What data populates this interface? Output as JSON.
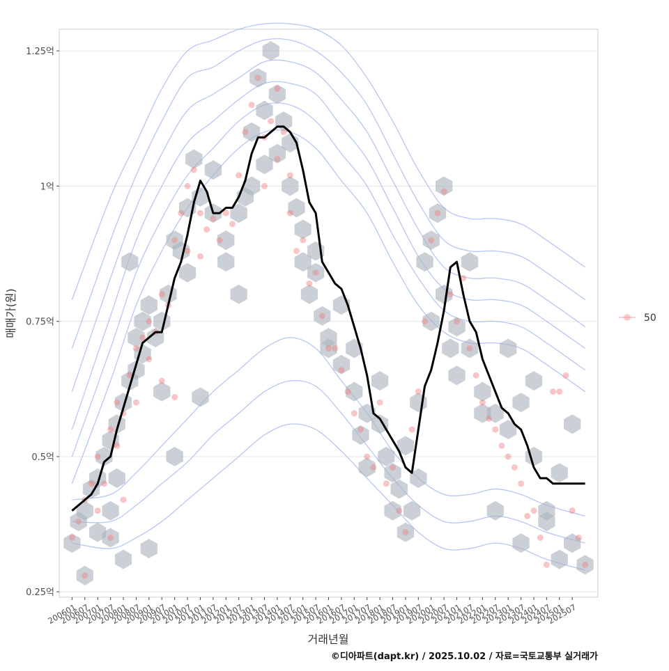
{
  "chart_data": {
    "type": "scatter",
    "title": "",
    "xlabel": "거래년월",
    "ylabel": "매매가(원)",
    "ylim": [
      0.24,
      1.29
    ],
    "xlim": [
      -1,
      41
    ],
    "x_tick_labels": [
      "200601",
      "200607",
      "200701",
      "200707",
      "200801",
      "200807",
      "200901",
      "200907",
      "201001",
      "201007",
      "201101",
      "201107",
      "201201",
      "201207",
      "201301",
      "201307",
      "201401",
      "201407",
      "201501",
      "201507",
      "201601",
      "201607",
      "201701",
      "201707",
      "201801",
      "201807",
      "201901",
      "201907",
      "202001",
      "202007",
      "202101",
      "202107",
      "202201",
      "202207",
      "202301",
      "202307",
      "202401",
      "202407",
      "202501",
      "202507"
    ],
    "y_ticks": [
      {
        "value": 0.25,
        "label": "0.25억"
      },
      {
        "value": 0.5,
        "label": "0.5억"
      },
      {
        "value": 0.75,
        "label": "0.75억"
      },
      {
        "value": 1.0,
        "label": "1억"
      },
      {
        "value": 1.25,
        "label": "1.25억"
      }
    ],
    "legend": {
      "label": "50",
      "position": "right"
    },
    "caption": "©디아파트(dapt.kr) / 2025.10.02 / 자료=국토교통부 실거래가",
    "layers": [
      "density-contours",
      "hexbin",
      "points",
      "moving-average"
    ],
    "moving_average": {
      "x": [
        0,
        0.5,
        1,
        1.5,
        2,
        2.5,
        3,
        3.5,
        4,
        4.5,
        5,
        5.5,
        6,
        6.5,
        7,
        7.5,
        8,
        8.5,
        9,
        9.5,
        10,
        10.5,
        11,
        11.5,
        12,
        12.5,
        13,
        13.5,
        14,
        14.5,
        15,
        15.5,
        16,
        16.5,
        17,
        17.5,
        18,
        18.5,
        19,
        19.5,
        20,
        20.5,
        21,
        21.5,
        22,
        22.5,
        23,
        23.5,
        24,
        24.5,
        25,
        25.5,
        26,
        26.5,
        27,
        27.5,
        28,
        28.5,
        29,
        29.5,
        30,
        30.5,
        31,
        31.5,
        32,
        32.5,
        33,
        33.5,
        34,
        34.5,
        35,
        35.5,
        36,
        36.5,
        37,
        37.5,
        38,
        38.5,
        39,
        39.5,
        40
      ],
      "y": [
        0.4,
        0.41,
        0.42,
        0.43,
        0.45,
        0.49,
        0.5,
        0.55,
        0.59,
        0.63,
        0.67,
        0.71,
        0.72,
        0.73,
        0.73,
        0.78,
        0.83,
        0.86,
        0.91,
        0.97,
        1.01,
        0.99,
        0.95,
        0.95,
        0.96,
        0.96,
        0.98,
        1.01,
        1.06,
        1.09,
        1.09,
        1.1,
        1.11,
        1.11,
        1.1,
        1.08,
        1.03,
        0.97,
        0.95,
        0.86,
        0.84,
        0.82,
        0.81,
        0.78,
        0.74,
        0.7,
        0.65,
        0.58,
        0.57,
        0.55,
        0.53,
        0.51,
        0.48,
        0.47,
        0.55,
        0.63,
        0.66,
        0.71,
        0.77,
        0.85,
        0.86,
        0.8,
        0.75,
        0.73,
        0.68,
        0.65,
        0.62,
        0.59,
        0.58,
        0.56,
        0.55,
        0.52,
        0.48,
        0.46,
        0.46,
        0.45,
        0.45,
        0.45,
        0.45,
        0.45,
        0.45
      ]
    },
    "points": {
      "x": [
        0,
        0.5,
        1,
        1,
        1.5,
        2,
        2,
        2.5,
        3,
        3,
        3.5,
        3.5,
        4,
        4,
        4.5,
        5,
        5,
        5.5,
        6,
        6,
        6.5,
        7,
        7,
        7.5,
        8,
        8,
        8.5,
        9,
        9,
        9.5,
        10,
        10,
        10.5,
        11,
        11.5,
        12,
        12.5,
        13,
        13.5,
        14,
        14.5,
        15,
        15,
        15.5,
        16,
        16,
        16.5,
        17,
        17,
        17.5,
        18,
        18.5,
        19,
        19.5,
        20,
        20.5,
        21,
        21.5,
        22,
        22.5,
        23,
        23.5,
        24,
        24.5,
        25,
        25.5,
        26,
        26.5,
        27,
        27.5,
        28,
        28.5,
        29,
        29.5,
        30,
        30.5,
        31,
        31.5,
        32,
        32.5,
        33,
        33.5,
        34,
        34.5,
        35,
        35.5,
        36,
        36.5,
        37,
        37.5,
        38,
        38.5,
        39,
        39.5,
        40
      ],
      "y": [
        0.35,
        0.38,
        0.42,
        0.28,
        0.45,
        0.4,
        0.5,
        0.45,
        0.55,
        0.35,
        0.52,
        0.6,
        0.58,
        0.42,
        0.65,
        0.7,
        0.6,
        0.72,
        0.75,
        0.68,
        0.73,
        0.8,
        0.64,
        0.78,
        0.9,
        0.61,
        0.95,
        1.0,
        0.88,
        1.03,
        0.95,
        0.87,
        0.92,
        0.94,
        0.9,
        0.95,
        0.93,
        1.02,
        1.1,
        1.15,
        1.2,
        1.09,
        1.0,
        1.12,
        1.18,
        1.05,
        1.1,
        1.02,
        0.95,
        0.88,
        0.9,
        0.82,
        0.84,
        0.76,
        0.7,
        0.7,
        0.66,
        0.62,
        0.58,
        0.55,
        0.5,
        0.48,
        0.6,
        0.45,
        0.48,
        0.4,
        0.36,
        0.55,
        0.62,
        0.75,
        0.9,
        0.95,
        0.99,
        0.8,
        0.75,
        0.83,
        0.7,
        0.65,
        0.6,
        0.57,
        0.55,
        0.52,
        0.5,
        0.48,
        0.45,
        0.39,
        0.4,
        0.35,
        0.3,
        0.62,
        0.62,
        0.65,
        0.4,
        0.35,
        0.3
      ]
    },
    "hexbin": {
      "x": [
        0,
        0.5,
        1,
        1,
        1.5,
        2,
        2,
        2.5,
        3,
        3,
        3,
        3.5,
        3.5,
        4,
        4,
        4.5,
        4.5,
        5,
        5,
        5.5,
        5.5,
        6,
        6,
        6.5,
        7,
        7,
        7.5,
        8,
        8,
        8.5,
        9,
        9,
        9.5,
        10,
        10,
        11,
        11,
        12,
        12,
        13,
        13,
        13.5,
        14,
        14,
        14.5,
        15,
        15,
        15.5,
        16,
        16,
        16.5,
        17,
        17,
        17.5,
        18,
        18,
        18.5,
        19,
        19,
        19.5,
        20,
        20,
        21,
        21,
        22,
        22,
        22.5,
        23,
        23,
        24,
        24,
        24.5,
        25,
        25,
        25.5,
        26,
        26,
        26.5,
        27,
        27,
        27.5,
        28,
        28,
        28.5,
        29,
        29,
        29.5,
        30,
        30,
        31,
        31,
        32,
        32,
        33,
        33,
        34,
        34,
        35,
        35,
        36,
        36,
        37,
        37,
        38,
        38,
        39,
        39,
        40
      ],
      "y": [
        0.34,
        0.38,
        0.4,
        0.28,
        0.44,
        0.36,
        0.46,
        0.5,
        0.4,
        0.53,
        0.35,
        0.56,
        0.46,
        0.6,
        0.31,
        0.64,
        0.86,
        0.72,
        0.66,
        0.75,
        0.69,
        0.78,
        0.33,
        0.72,
        0.75,
        0.62,
        0.8,
        0.9,
        0.5,
        0.88,
        0.96,
        0.84,
        1.05,
        0.98,
        0.61,
        1.03,
        0.95,
        0.9,
        0.86,
        0.95,
        0.8,
        0.98,
        1.1,
        1.0,
        1.2,
        1.14,
        1.04,
        1.25,
        1.17,
        1.06,
        1.12,
        1.08,
        1.0,
        0.96,
        0.92,
        0.86,
        0.8,
        0.84,
        0.88,
        0.76,
        0.72,
        0.7,
        0.78,
        0.67,
        0.62,
        0.7,
        0.54,
        0.58,
        0.48,
        0.64,
        0.56,
        0.5,
        0.47,
        0.4,
        0.44,
        0.52,
        0.36,
        0.4,
        0.6,
        0.46,
        0.86,
        0.9,
        0.75,
        0.95,
        1.0,
        0.8,
        0.7,
        0.74,
        0.65,
        0.86,
        0.7,
        0.58,
        0.62,
        0.58,
        0.4,
        0.55,
        0.7,
        0.6,
        0.34,
        0.64,
        0.5,
        0.4,
        0.38,
        0.31,
        0.47,
        0.56,
        0.34,
        0.3
      ]
    },
    "contours": [
      {
        "x": [
          0,
          3,
          5,
          7,
          9,
          11,
          13,
          15,
          17,
          19,
          21,
          23,
          25,
          27,
          29,
          31,
          33,
          35,
          37,
          40
        ],
        "y": [
          0.79,
          0.98,
          1.08,
          1.18,
          1.25,
          1.27,
          1.29,
          1.3,
          1.3,
          1.29,
          1.26,
          1.2,
          1.12,
          1.03,
          0.96,
          0.94,
          0.94,
          0.93,
          0.9,
          0.85
        ]
      },
      {
        "x": [
          0,
          3,
          5,
          7,
          9,
          11,
          13,
          15,
          17,
          19,
          21,
          23,
          25,
          27,
          29,
          31,
          33,
          35,
          37,
          40
        ],
        "y": [
          0.7,
          0.9,
          1.02,
          1.12,
          1.2,
          1.22,
          1.25,
          1.27,
          1.27,
          1.25,
          1.21,
          1.15,
          1.06,
          0.97,
          0.9,
          0.88,
          0.88,
          0.87,
          0.84,
          0.79
        ]
      },
      {
        "x": [
          0,
          3,
          5,
          7,
          9,
          11,
          13,
          15,
          17,
          19,
          21,
          23,
          25,
          27,
          29,
          31,
          33,
          35,
          37,
          40
        ],
        "y": [
          0.62,
          0.83,
          0.96,
          1.06,
          1.14,
          1.17,
          1.2,
          1.23,
          1.23,
          1.21,
          1.16,
          1.1,
          1.01,
          0.92,
          0.85,
          0.83,
          0.83,
          0.82,
          0.79,
          0.74
        ]
      },
      {
        "x": [
          0,
          3,
          5,
          7,
          9,
          11,
          13,
          15,
          17,
          19,
          21,
          23,
          25,
          27,
          29,
          31,
          33,
          35,
          37,
          40
        ],
        "y": [
          0.55,
          0.76,
          0.9,
          1.0,
          1.08,
          1.12,
          1.16,
          1.19,
          1.19,
          1.17,
          1.11,
          1.05,
          0.96,
          0.87,
          0.81,
          0.79,
          0.79,
          0.78,
          0.75,
          0.7
        ]
      },
      {
        "x": [
          0,
          3,
          5,
          7,
          9,
          11,
          13,
          15,
          17,
          19,
          21,
          23,
          25,
          27,
          29,
          31,
          33,
          35,
          37,
          40
        ],
        "y": [
          0.5,
          0.7,
          0.84,
          0.94,
          1.02,
          1.07,
          1.12,
          1.15,
          1.15,
          1.12,
          1.06,
          1.0,
          0.91,
          0.83,
          0.77,
          0.75,
          0.75,
          0.74,
          0.71,
          0.66
        ]
      },
      {
        "x": [
          0,
          3,
          5,
          7,
          9,
          11,
          13,
          15,
          17,
          19,
          21,
          23,
          25,
          27,
          29,
          31,
          33,
          35,
          37,
          40
        ],
        "y": [
          0.45,
          0.64,
          0.78,
          0.88,
          0.96,
          1.02,
          1.07,
          1.1,
          1.1,
          1.07,
          1.01,
          0.95,
          0.86,
          0.78,
          0.73,
          0.71,
          0.71,
          0.7,
          0.67,
          0.62
        ]
      },
      {
        "x": [
          0,
          3,
          5,
          7,
          9,
          11,
          13,
          15,
          17,
          19,
          21,
          23,
          25,
          27,
          29,
          31,
          33,
          35,
          37,
          40
        ],
        "y": [
          0.34,
          0.33,
          0.35,
          0.38,
          0.42,
          0.46,
          0.5,
          0.54,
          0.56,
          0.55,
          0.51,
          0.46,
          0.41,
          0.36,
          0.33,
          0.33,
          0.34,
          0.33,
          0.31,
          0.29
        ]
      },
      {
        "x": [
          0,
          3,
          5,
          7,
          9,
          11,
          13,
          15,
          17,
          19,
          21,
          23,
          25,
          27,
          29,
          31,
          33,
          35,
          37,
          40
        ],
        "y": [
          0.38,
          0.38,
          0.41,
          0.45,
          0.49,
          0.54,
          0.58,
          0.62,
          0.64,
          0.63,
          0.58,
          0.52,
          0.46,
          0.41,
          0.38,
          0.38,
          0.39,
          0.38,
          0.36,
          0.34
        ]
      },
      {
        "x": [
          0,
          3,
          5,
          7,
          9,
          11,
          13,
          15,
          17,
          19,
          21,
          23,
          25,
          27,
          29,
          31,
          33,
          35,
          37,
          40
        ],
        "y": [
          0.42,
          0.43,
          0.47,
          0.52,
          0.57,
          0.62,
          0.66,
          0.7,
          0.72,
          0.7,
          0.64,
          0.58,
          0.51,
          0.46,
          0.43,
          0.43,
          0.44,
          0.43,
          0.41,
          0.39
        ]
      }
    ]
  }
}
